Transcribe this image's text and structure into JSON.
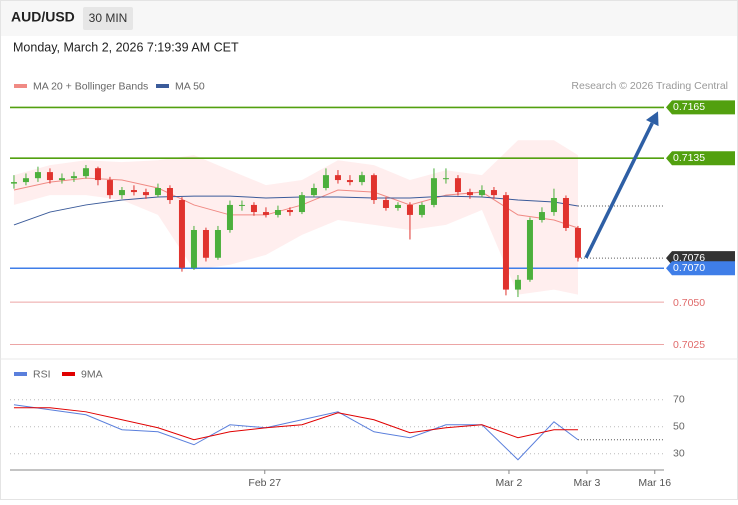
{
  "chart_data": {
    "type": "candlestick",
    "title": "AUD/USD",
    "timeframe": "30 MIN",
    "subtitle": "Monday, March 2, 2026 7:19:39 AM CET",
    "credit": "Research © 2026 Trading Central",
    "up_color": "#4caf3c",
    "down_color": "#e0332e",
    "candles": [
      [
        0.712,
        0.7125,
        0.7117,
        0.71209
      ],
      [
        0.71209,
        0.7126,
        0.7119,
        0.71232
      ],
      [
        0.71232,
        0.713,
        0.7121,
        0.71268
      ],
      [
        0.71268,
        0.7129,
        0.712,
        0.71221
      ],
      [
        0.71221,
        0.7126,
        0.712,
        0.71232
      ],
      [
        0.71232,
        0.7127,
        0.7121,
        0.71244
      ],
      [
        0.71244,
        0.7131,
        0.7123,
        0.71291
      ],
      [
        0.71291,
        0.713,
        0.7119,
        0.71221
      ],
      [
        0.71221,
        0.7124,
        0.7111,
        0.71132
      ],
      [
        0.71132,
        0.7118,
        0.7111,
        0.71162
      ],
      [
        0.71162,
        0.7119,
        0.7113,
        0.7115
      ],
      [
        0.7115,
        0.7117,
        0.7111,
        0.71132
      ],
      [
        0.71132,
        0.712,
        0.7112,
        0.71174
      ],
      [
        0.71174,
        0.7119,
        0.7108,
        0.71103
      ],
      [
        0.71103,
        0.7112,
        0.7068,
        0.70703
      ],
      [
        0.70703,
        0.7095,
        0.7069,
        0.70926
      ],
      [
        0.70926,
        0.7094,
        0.7074,
        0.70762
      ],
      [
        0.70762,
        0.7095,
        0.7075,
        0.70926
      ],
      [
        0.70926,
        0.711,
        0.7091,
        0.71074
      ],
      [
        0.71074,
        0.711,
        0.7104,
        0.71074
      ],
      [
        0.71074,
        0.7109,
        0.7101,
        0.71032
      ],
      [
        0.71032,
        0.7106,
        0.71,
        0.71015
      ],
      [
        0.71015,
        0.7107,
        0.71,
        0.71044
      ],
      [
        0.71044,
        0.7106,
        0.7101,
        0.71032
      ],
      [
        0.71032,
        0.7115,
        0.7102,
        0.71132
      ],
      [
        0.71132,
        0.712,
        0.7112,
        0.71174
      ],
      [
        0.71174,
        0.7129,
        0.7116,
        0.7125
      ],
      [
        0.7125,
        0.7128,
        0.712,
        0.71221
      ],
      [
        0.71221,
        0.7125,
        0.7119,
        0.71209
      ],
      [
        0.71209,
        0.7127,
        0.7119,
        0.7125
      ],
      [
        0.7125,
        0.7126,
        0.7108,
        0.71103
      ],
      [
        0.71103,
        0.7112,
        0.7104,
        0.71056
      ],
      [
        0.71056,
        0.7109,
        0.7104,
        0.71074
      ],
      [
        0.71074,
        0.7109,
        0.7087,
        0.71015
      ],
      [
        0.71015,
        0.7109,
        0.71,
        0.71074
      ],
      [
        0.71074,
        0.7129,
        0.7106,
        0.71232
      ],
      [
        0.71232,
        0.7129,
        0.712,
        0.71232
      ],
      [
        0.71232,
        0.7125,
        0.7113,
        0.7115
      ],
      [
        0.7115,
        0.7117,
        0.7111,
        0.71132
      ],
      [
        0.71132,
        0.7119,
        0.7112,
        0.71162
      ],
      [
        0.71162,
        0.7118,
        0.7111,
        0.71132
      ],
      [
        0.71132,
        0.7115,
        0.7054,
        0.70574
      ],
      [
        0.70574,
        0.7066,
        0.7053,
        0.70632
      ],
      [
        0.70632,
        0.71,
        0.7062,
        0.70985
      ],
      [
        0.70985,
        0.7106,
        0.7097,
        0.71032
      ],
      [
        0.71032,
        0.7117,
        0.7101,
        0.71115
      ],
      [
        0.71115,
        0.7113,
        0.7092,
        0.70938
      ],
      [
        0.70938,
        0.7095,
        0.7074,
        0.70762
      ]
    ],
    "indicator_x": [
      0,
      3,
      6,
      9,
      12,
      15,
      18,
      21,
      24,
      27,
      30,
      33,
      36,
      39,
      42,
      45,
      47
    ],
    "series": [
      {
        "name": "MA 20 + Bollinger Bands",
        "color": "#f08a84",
        "values": [
          0.71162,
          0.71209,
          0.71232,
          0.71221,
          0.71174,
          0.71074,
          0.71015,
          0.71015,
          0.71074,
          0.71162,
          0.7115,
          0.71074,
          0.71132,
          0.7115,
          0.71015,
          0.70985,
          0.70938
        ],
        "upper": [
          0.7125,
          0.71309,
          0.71338,
          0.71327,
          0.71338,
          0.71368,
          0.71279,
          0.71191,
          0.71221,
          0.71338,
          0.71309,
          0.71221,
          0.71279,
          0.7125,
          0.71456,
          0.71456,
          0.71368
        ],
        "lower": [
          0.71074,
          0.71132,
          0.71132,
          0.71103,
          0.71015,
          0.70691,
          0.70721,
          0.70779,
          0.70897,
          0.70985,
          0.70956,
          0.70926,
          0.70956,
          0.71044,
          0.70544,
          0.70574,
          0.70544
        ]
      },
      {
        "name": "MA 50",
        "color": "#3b5b9a",
        "values": [
          0.70956,
          0.71032,
          0.71074,
          0.71103,
          0.71121,
          0.71126,
          0.71126,
          0.71115,
          0.71121,
          0.71121,
          0.71115,
          0.71115,
          0.71126,
          0.71121,
          0.71103,
          0.71091,
          0.71068
        ]
      }
    ],
    "levels": [
      {
        "value": 0.7165,
        "color": "#52a00f",
        "style": "box"
      },
      {
        "value": 0.7135,
        "color": "#52a00f",
        "style": "box"
      },
      {
        "value": 0.7076,
        "color": "#333333",
        "style": "current"
      },
      {
        "value": 0.707,
        "label": "0.7070",
        "color": "#3f7ee8",
        "style": "box"
      },
      {
        "value": 0.705,
        "label": "0.7050",
        "color": "#e06a6a",
        "style": "text"
      },
      {
        "value": 0.7025,
        "color": "#e06a6a",
        "style": "text"
      }
    ],
    "ylim": [
      0.7017,
      0.7193
    ],
    "xlim": [
      -0.33,
      54.17
    ],
    "xticks": [
      {
        "value": 20.9,
        "label": "Feb 27"
      },
      {
        "value": 41.25,
        "label": "Mar 2"
      },
      {
        "value": 47.75,
        "label": "Mar 3"
      },
      {
        "value": 53.4,
        "label": "Mar 16"
      }
    ],
    "rsi": {
      "series": [
        {
          "name": "RSI",
          "color": "#5a7fdc",
          "values": [
            66.3,
            62.6,
            58.9,
            47.8,
            46.3,
            36.7,
            51.5,
            49.3,
            55.2,
            61.1,
            46.3,
            41.9,
            51.5,
            51.5,
            25.6,
            53.7,
            40.4
          ]
        },
        {
          "name": "9MA",
          "color": "#e00000",
          "values": [
            64.1,
            64.1,
            61.1,
            55.2,
            49.3,
            40.4,
            46.3,
            49.3,
            51.5,
            60.4,
            55.2,
            45.6,
            49.3,
            51.5,
            41.9,
            47.8,
            47.8
          ]
        }
      ],
      "ylim": [
        18,
        98
      ],
      "yticks": [
        70,
        50,
        30
      ]
    }
  }
}
